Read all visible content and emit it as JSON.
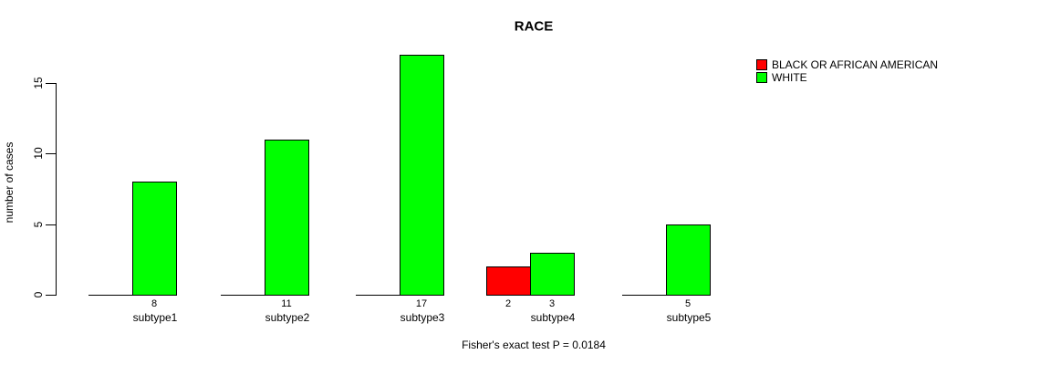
{
  "chart_data": {
    "type": "bar",
    "title": "RACE",
    "ylabel": "number of cases",
    "xlabel": "",
    "categories": [
      "subtype1",
      "subtype2",
      "subtype3",
      "subtype4",
      "subtype5"
    ],
    "series": [
      {
        "name": "BLACK OR AFRICAN AMERICAN",
        "color": "#ff0000",
        "values": [
          0,
          0,
          0,
          2,
          0
        ]
      },
      {
        "name": "WHITE",
        "color": "#00ff00",
        "values": [
          8,
          11,
          17,
          3,
          5
        ]
      }
    ],
    "bar_value_labels": [
      [
        "",
        "",
        "",
        "2",
        ""
      ],
      [
        "8",
        "11",
        "17",
        "3",
        "5"
      ]
    ],
    "yticks": [
      0,
      5,
      10,
      15
    ],
    "ylim": [
      0,
      17
    ],
    "grid": false,
    "legend_position": "top-right",
    "annotation": "Fisher's exact test P = 0.0184",
    "colors": {
      "foreground": "#000000",
      "background": "#ffffff"
    }
  }
}
